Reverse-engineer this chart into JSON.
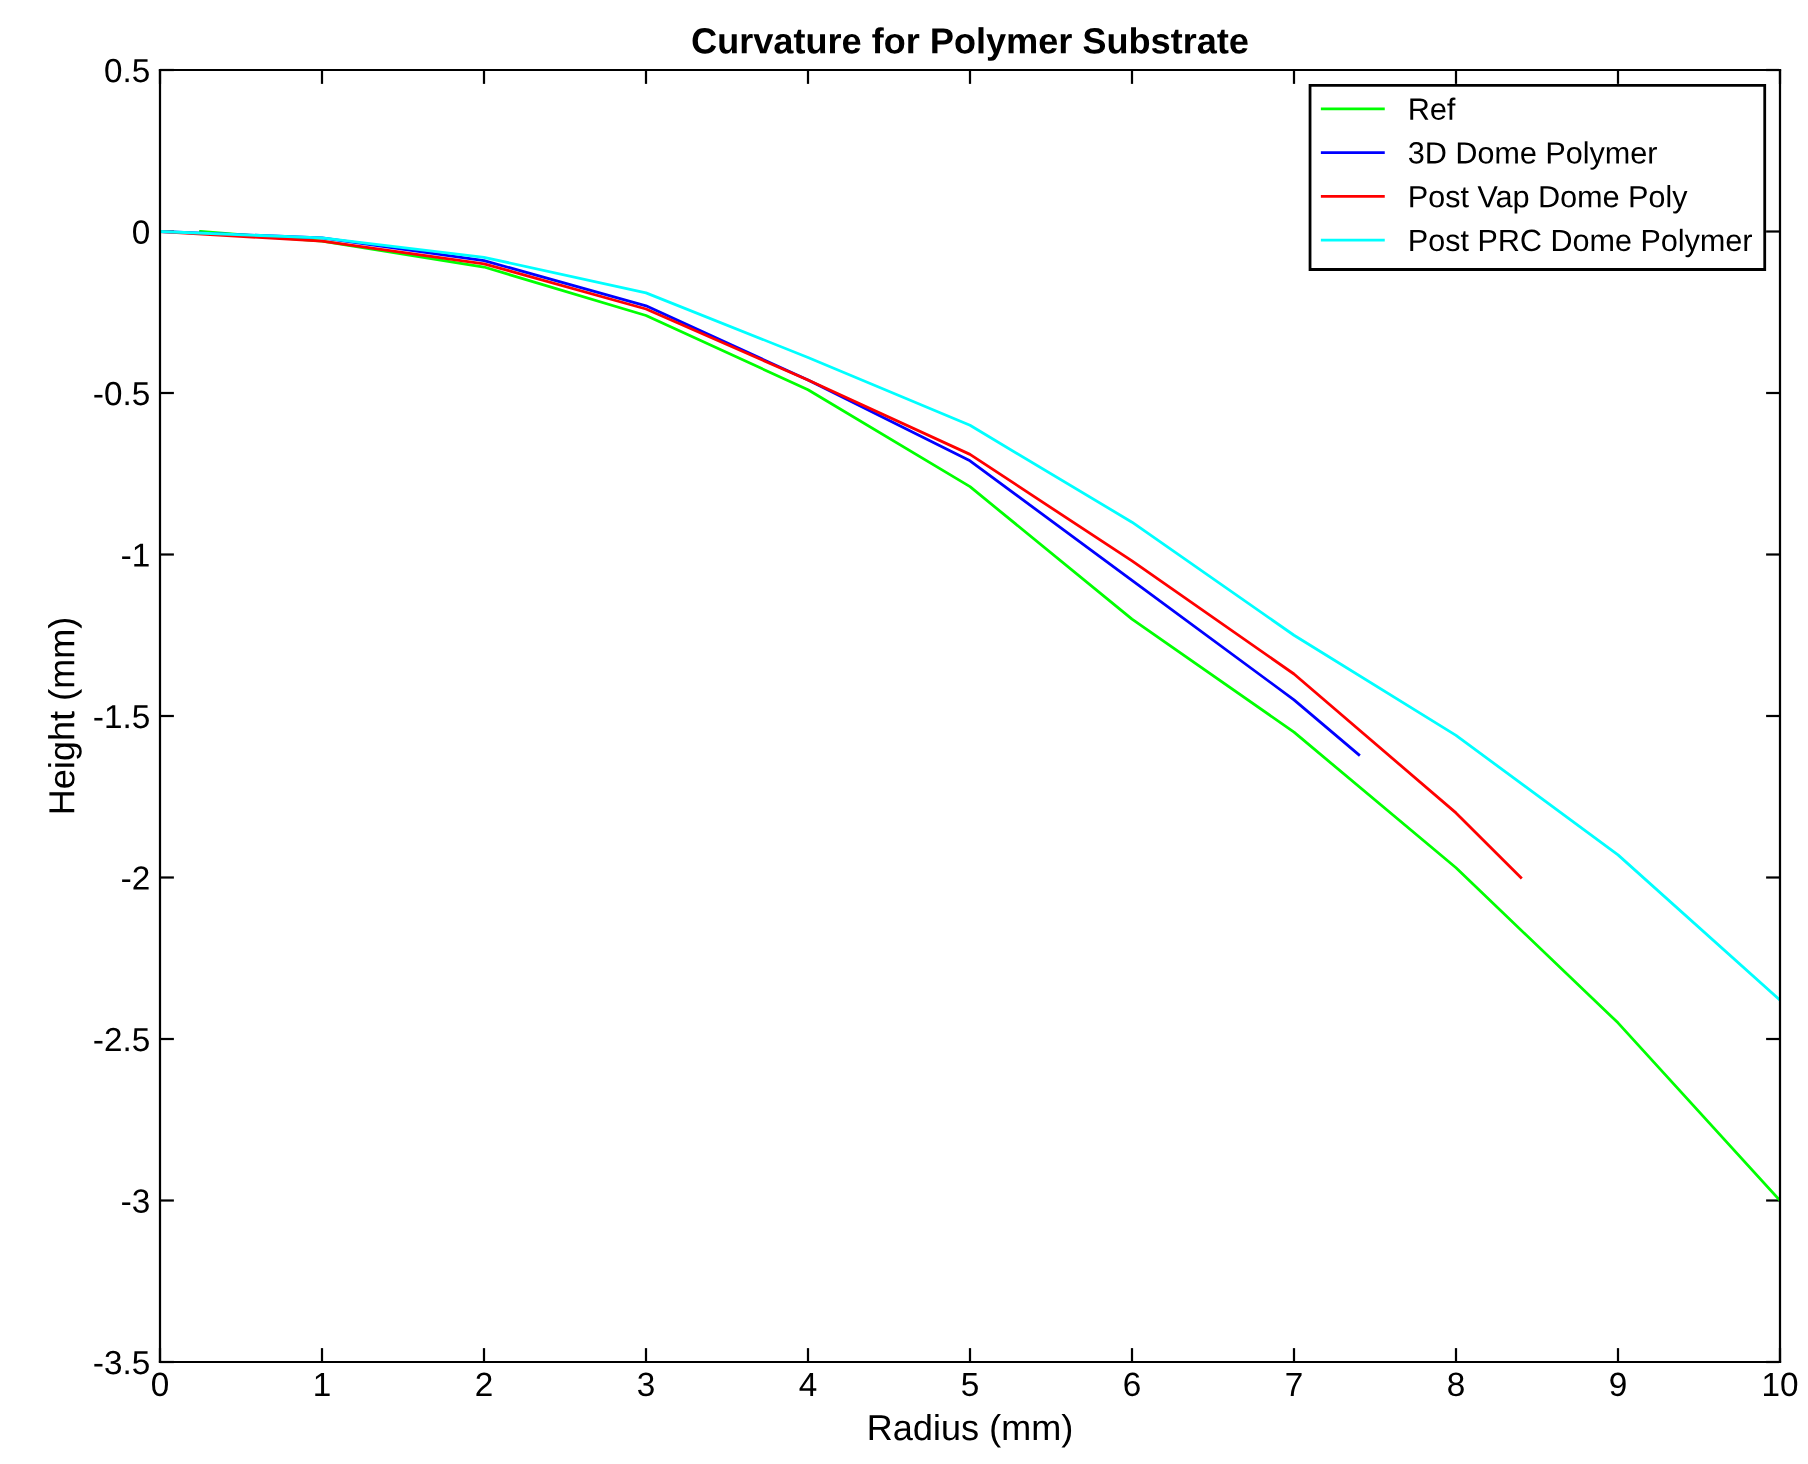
{
  "chart_data": {
    "type": "line",
    "title": "Curvature for Polymer Substrate",
    "xlabel": "Radius (mm)",
    "ylabel": "Height (mm)",
    "xlim": [
      0,
      10
    ],
    "ylim": [
      -3.5,
      0.5
    ],
    "xticks": [
      0,
      1,
      2,
      3,
      4,
      5,
      6,
      7,
      8,
      9,
      10
    ],
    "yticks": [
      -3.5,
      -3,
      -2.5,
      -2,
      -1.5,
      -1,
      -0.5,
      0,
      0.5
    ],
    "grid": false,
    "legend": "top right",
    "marker": "none",
    "line_style": "solid",
    "series": [
      {
        "name": "Ref",
        "color": "#00ff00",
        "x": [
          0.25,
          1,
          2,
          3,
          4,
          5,
          6,
          7,
          8,
          9,
          10
        ],
        "values": [
          0,
          -0.03,
          -0.11,
          -0.26,
          -0.49,
          -0.79,
          -1.2,
          -1.55,
          -1.97,
          -2.45,
          -3.0
        ]
      },
      {
        "name": "3D Dome Polymer",
        "color": "#0000ff",
        "x": [
          0,
          1,
          2,
          3,
          4,
          5,
          6,
          7,
          7.4
        ],
        "values": [
          0,
          -0.02,
          -0.09,
          -0.23,
          -0.46,
          -0.71,
          -1.08,
          -1.45,
          -1.62
        ]
      },
      {
        "name": "Post Vap Dome Poly",
        "color": "#ff0000",
        "x": [
          0,
          1,
          2,
          3,
          4,
          5,
          6,
          7,
          8,
          8.4
        ],
        "values": [
          0,
          -0.03,
          -0.1,
          -0.24,
          -0.46,
          -0.69,
          -1.02,
          -1.37,
          -1.8,
          -2.0
        ]
      },
      {
        "name": "Post PRC Dome Polymer",
        "color": "#00ffff",
        "x": [
          0,
          1,
          2,
          3,
          4,
          5,
          6,
          7,
          8,
          9,
          10
        ],
        "values": [
          0,
          -0.02,
          -0.08,
          -0.19,
          -0.39,
          -0.6,
          -0.9,
          -1.25,
          -1.56,
          -1.93,
          -2.38
        ]
      }
    ]
  }
}
